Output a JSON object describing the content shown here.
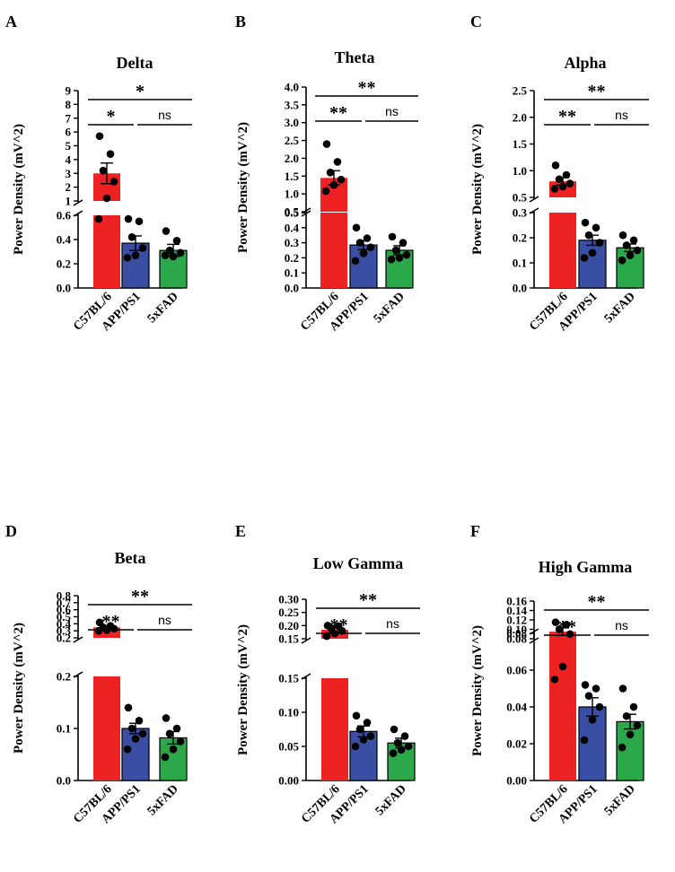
{
  "figure": {
    "ylabel": "Power Density (mV^2)"
  },
  "chart_data": [
    {
      "panel": "A",
      "type": "bar",
      "title": "Delta",
      "ylabel": "Power Density (mV^2)",
      "categories": [
        "C57BL/6",
        "APP/PS1",
        "5xFAD"
      ],
      "colors": [
        "#ee2222",
        "#3a4ea3",
        "#2aa84a"
      ],
      "values": [
        3.0,
        0.37,
        0.31
      ],
      "errors": [
        0.75,
        0.06,
        0.05
      ],
      "points": [
        [
          5.7,
          4.4,
          3.2,
          2.4,
          1.2,
          0.57
        ],
        [
          0.57,
          0.55,
          0.42,
          0.33,
          0.27,
          0.25
        ],
        [
          0.47,
          0.39,
          0.31,
          0.29,
          0.26,
          0.27
        ]
      ],
      "axis_lower": {
        "ylim": [
          0,
          0.6
        ],
        "ticks": [
          "0.0",
          "0.2",
          "0.4",
          "0.6"
        ]
      },
      "axis_upper": {
        "ylim": [
          1,
          9
        ],
        "ticks": [
          "1",
          "2",
          "3",
          "4",
          "5",
          "6",
          "7",
          "8",
          "9"
        ]
      },
      "significance": [
        {
          "from": 0,
          "to": 2,
          "label": "*"
        },
        {
          "from": 0,
          "to": 1,
          "label": "*"
        },
        {
          "from": 1,
          "to": 2,
          "label": "ns"
        }
      ]
    },
    {
      "panel": "B",
      "type": "bar",
      "title": "Theta",
      "ylabel": "Power Density (mV^2)",
      "categories": [
        "C57BL/6",
        "APP/PS1",
        "5xFAD"
      ],
      "colors": [
        "#ee2222",
        "#3a4ea3",
        "#2aa84a"
      ],
      "values": [
        1.45,
        0.285,
        0.25
      ],
      "errors": [
        0.2,
        0.03,
        0.03
      ],
      "points": [
        [
          2.4,
          1.9,
          1.6,
          1.4,
          1.25,
          1.08
        ],
        [
          0.4,
          0.33,
          0.3,
          0.27,
          0.23,
          0.18
        ],
        [
          0.34,
          0.3,
          0.25,
          0.22,
          0.2,
          0.19
        ]
      ],
      "axis_lower": {
        "ylim": [
          0,
          0.5
        ],
        "ticks": [
          "0.0",
          "0.1",
          "0.2",
          "0.3",
          "0.4",
          "0.5"
        ]
      },
      "axis_upper": {
        "ylim": [
          0.5,
          4
        ],
        "ticks": [
          "0.5",
          "1.0",
          "1.5",
          "2.0",
          "2.5",
          "3.0",
          "3.5",
          "4.0"
        ]
      },
      "significance": [
        {
          "from": 0,
          "to": 2,
          "label": "**"
        },
        {
          "from": 0,
          "to": 1,
          "label": "**"
        },
        {
          "from": 1,
          "to": 2,
          "label": "ns"
        }
      ]
    },
    {
      "panel": "C",
      "type": "bar",
      "title": "Alpha",
      "ylabel": "Power Density (mV^2)",
      "categories": [
        "C57BL/6",
        "APP/PS1",
        "5xFAD"
      ],
      "colors": [
        "#ee2222",
        "#3a4ea3",
        "#2aa84a"
      ],
      "values": [
        0.8,
        0.19,
        0.16
      ],
      "errors": [
        0.07,
        0.02,
        0.015
      ],
      "points": [
        [
          1.1,
          0.92,
          0.84,
          0.76,
          0.7,
          0.66
        ],
        [
          0.26,
          0.24,
          0.21,
          0.18,
          0.14,
          0.12
        ],
        [
          0.21,
          0.19,
          0.17,
          0.15,
          0.13,
          0.11
        ]
      ],
      "axis_lower": {
        "ylim": [
          0,
          0.3
        ],
        "ticks": [
          "0.0",
          "0.1",
          "0.2",
          "0.3"
        ]
      },
      "axis_upper": {
        "ylim": [
          0.5,
          2.5
        ],
        "ticks": [
          "0.5",
          "1.0",
          "1.5",
          "2.0",
          "2.5"
        ]
      },
      "significance": [
        {
          "from": 0,
          "to": 2,
          "label": "**"
        },
        {
          "from": 0,
          "to": 1,
          "label": "**"
        },
        {
          "from": 1,
          "to": 2,
          "label": "ns"
        }
      ]
    },
    {
      "panel": "D",
      "type": "bar",
      "title": "Beta",
      "ylabel": "Power Density (mV^2)",
      "categories": [
        "C57BL/6",
        "APP/PS1",
        "5xFAD"
      ],
      "colors": [
        "#ee2222",
        "#3a4ea3",
        "#2aa84a"
      ],
      "values": [
        0.35,
        0.1,
        0.082
      ],
      "errors": [
        0.02,
        0.01,
        0.012
      ],
      "points": [
        [
          0.42,
          0.37,
          0.35,
          0.33,
          0.31,
          0.3
        ],
        [
          0.14,
          0.115,
          0.1,
          0.09,
          0.08,
          0.06
        ],
        [
          0.12,
          0.1,
          0.09,
          0.075,
          0.06,
          0.045
        ]
      ],
      "axis_lower": {
        "ylim": [
          0,
          0.2
        ],
        "ticks": [
          "0.0",
          "0.1",
          "0.2"
        ]
      },
      "axis_upper": {
        "ylim": [
          0.2,
          0.8
        ],
        "ticks": [
          "0.2",
          "0.3",
          "0.4",
          "0.5",
          "0.6",
          "0.7",
          "0.8"
        ]
      },
      "significance": [
        {
          "from": 0,
          "to": 2,
          "label": "**"
        },
        {
          "from": 0,
          "to": 1,
          "label": "**"
        },
        {
          "from": 1,
          "to": 2,
          "label": "ns"
        }
      ]
    },
    {
      "panel": "E",
      "type": "bar",
      "title": "Low Gamma",
      "ylabel": "Power Density (mV^2)",
      "categories": [
        "C57BL/6",
        "APP/PS1",
        "5xFAD"
      ],
      "colors": [
        "#ee2222",
        "#3a4ea3",
        "#2aa84a"
      ],
      "values": [
        0.184,
        0.072,
        0.055
      ],
      "errors": [
        0.01,
        0.008,
        0.007
      ],
      "points": [
        [
          0.2,
          0.198,
          0.19,
          0.18,
          0.17,
          0.16
        ],
        [
          0.095,
          0.085,
          0.075,
          0.065,
          0.06,
          0.05
        ],
        [
          0.075,
          0.065,
          0.055,
          0.05,
          0.045,
          0.04
        ]
      ],
      "axis_lower": {
        "ylim": [
          0,
          0.15
        ],
        "ticks": [
          "0.00",
          "0.05",
          "0.10",
          "0.15"
        ]
      },
      "axis_upper": {
        "ylim": [
          0.15,
          0.3
        ],
        "ticks": [
          "0.15",
          "0.20",
          "0.25",
          "0.30"
        ]
      },
      "significance": [
        {
          "from": 0,
          "to": 2,
          "label": "**"
        },
        {
          "from": 0,
          "to": 1,
          "label": "**"
        },
        {
          "from": 1,
          "to": 2,
          "label": "ns"
        }
      ]
    },
    {
      "panel": "F",
      "type": "bar",
      "title": "High Gamma",
      "ylabel": "Power Density (mV^2)",
      "categories": [
        "C57BL/6",
        "APP/PS1",
        "5xFAD"
      ],
      "colors": [
        "#ee2222",
        "#3a4ea3",
        "#2aa84a"
      ],
      "values": [
        0.095,
        0.04,
        0.032
      ],
      "errors": [
        0.008,
        0.005,
        0.004
      ],
      "points": [
        [
          0.115,
          0.11,
          0.1,
          0.09,
          0.062,
          0.055
        ],
        [
          0.052,
          0.05,
          0.046,
          0.04,
          0.033,
          0.022
        ],
        [
          0.05,
          0.04,
          0.035,
          0.03,
          0.025,
          0.018
        ]
      ],
      "axis_lower": {
        "ylim": [
          0,
          0.08
        ],
        "ticks": [
          "0.00",
          "0.02",
          "0.04",
          "0.06",
          "0.08"
        ]
      },
      "axis_upper": {
        "ylim": [
          0.08,
          0.16
        ],
        "ticks": [
          "0.08",
          "0.10",
          "0.12",
          "0.14",
          "0.16"
        ]
      },
      "significance": [
        {
          "from": 0,
          "to": 2,
          "label": "**"
        },
        {
          "from": 0,
          "to": 1,
          "label": "**"
        },
        {
          "from": 1,
          "to": 2,
          "label": "ns"
        }
      ]
    }
  ]
}
